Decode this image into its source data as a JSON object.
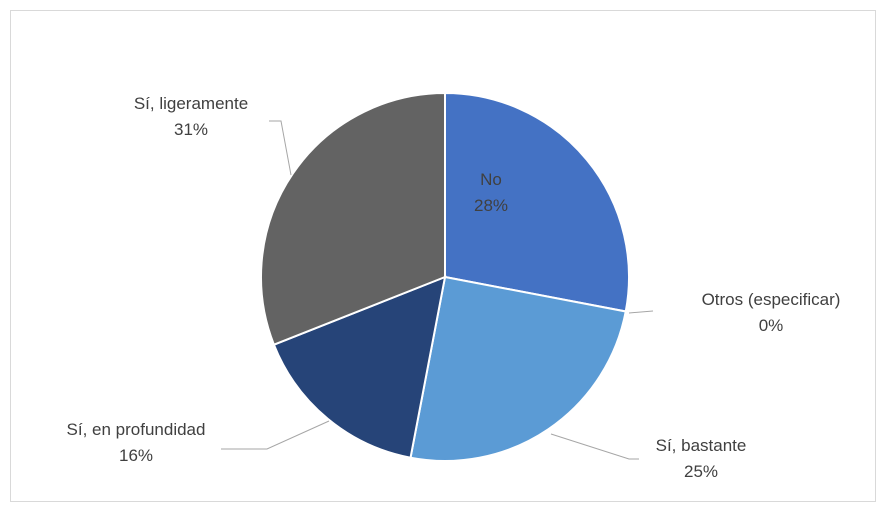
{
  "colors": {
    "No": "#4472c4",
    "Otros (especificar)": "#ed7d31",
    "Sí, bastante": "#5b9bd5",
    "Sí, en profundidad": "#264478",
    "Sí, ligeramente": "#636363",
    "separator": "#ffffff",
    "leader": "#a6a6a6",
    "label_text": "#404040",
    "border": "#d9d9d9"
  },
  "chart_data": {
    "type": "pie",
    "title": "",
    "categories": [
      "No",
      "Otros (especificar)",
      "Sí, bastante",
      "Sí, en profundidad",
      "Sí, ligeramente"
    ],
    "values": [
      28,
      0,
      25,
      16,
      31
    ],
    "value_labels": [
      "28%",
      "0%",
      "25%",
      "16%",
      "31%"
    ],
    "start_angle_deg": 0,
    "direction": "clockwise",
    "legend": "none",
    "data_labels": "category name and percentage"
  }
}
